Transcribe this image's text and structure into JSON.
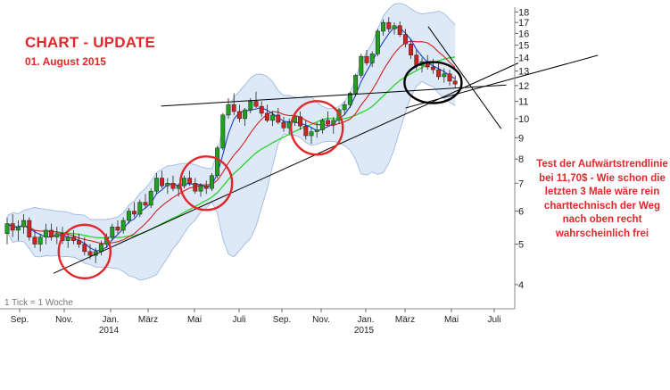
{
  "title": "CHART - UPDATE",
  "subtitle": "01. August 2015",
  "annotation": "Test der Aufwärtstrendlinie bei 11,70$ - Wie schon die letzten 3 Male wäre rein charttechnisch der Weg nach oben recht wahrscheinlich frei",
  "tick_note": "1 Tick = 1 Woche",
  "colors": {
    "up": "#1fa01f",
    "down": "#d42020",
    "ma_fast": "#1f3fd6",
    "ma_mid": "#d42020",
    "ma_slow": "#2ad42a",
    "band_fill": "#dde9f7",
    "band_edge": "#9dbbe0",
    "circle_red": "#e3262a",
    "circle_black": "#000000",
    "trendline": "#000000",
    "text_red": "#e3262a"
  },
  "chart_data": {
    "type": "candlestick",
    "interval": "weekly",
    "yscale": "log",
    "ylim": [
      3.5,
      18.5
    ],
    "y_ticks": [
      4,
      5,
      6,
      7,
      8,
      9,
      10,
      11,
      12,
      13,
      14,
      15,
      16,
      17,
      18
    ],
    "x_ticks": [
      "Sep.",
      "Nov.",
      "Jan.",
      "März",
      "Mai",
      "Juli",
      "Sep.",
      "Nov.",
      "Jan.",
      "März",
      "Mai",
      "Juli"
    ],
    "x_years": [
      "2014",
      "2015"
    ],
    "series": [
      {
        "name": "",
        "type": "ohlc",
        "values": [
          [
            5.3,
            5.8,
            5.0,
            5.6
          ],
          [
            5.6,
            5.9,
            5.2,
            5.4
          ],
          [
            5.4,
            5.7,
            5.1,
            5.5
          ],
          [
            5.5,
            5.9,
            5.3,
            5.7
          ],
          [
            5.7,
            5.8,
            5.1,
            5.2
          ],
          [
            5.2,
            5.4,
            4.9,
            5.0
          ],
          [
            5.0,
            5.3,
            4.8,
            5.2
          ],
          [
            5.2,
            5.6,
            5.0,
            5.4
          ],
          [
            5.4,
            5.6,
            5.1,
            5.2
          ],
          [
            5.2,
            5.5,
            5.0,
            5.3
          ],
          [
            5.3,
            5.5,
            5.0,
            5.1
          ],
          [
            5.1,
            5.3,
            4.9,
            5.2
          ],
          [
            5.2,
            5.4,
            5.0,
            5.1
          ],
          [
            5.1,
            5.3,
            4.9,
            5.0
          ],
          [
            5.0,
            5.2,
            4.7,
            4.8
          ],
          [
            4.8,
            5.0,
            4.6,
            4.7
          ],
          [
            4.7,
            4.9,
            4.5,
            4.8
          ],
          [
            4.8,
            5.1,
            4.7,
            5.0
          ],
          [
            5.0,
            5.3,
            4.9,
            5.2
          ],
          [
            5.2,
            5.6,
            5.1,
            5.5
          ],
          [
            5.5,
            5.7,
            5.3,
            5.4
          ],
          [
            5.4,
            5.8,
            5.3,
            5.7
          ],
          [
            5.7,
            6.1,
            5.6,
            6.0
          ],
          [
            6.0,
            6.3,
            5.8,
            5.9
          ],
          [
            5.9,
            6.4,
            5.8,
            6.3
          ],
          [
            6.3,
            6.6,
            6.1,
            6.2
          ],
          [
            6.2,
            6.8,
            6.1,
            6.7
          ],
          [
            6.7,
            7.4,
            6.6,
            7.2
          ],
          [
            7.2,
            7.5,
            6.8,
            6.9
          ],
          [
            6.9,
            7.2,
            6.6,
            7.0
          ],
          [
            7.0,
            7.3,
            6.7,
            6.8
          ],
          [
            6.8,
            7.0,
            6.5,
            6.9
          ],
          [
            6.9,
            7.3,
            6.8,
            7.2
          ],
          [
            7.2,
            7.5,
            6.9,
            7.0
          ],
          [
            7.0,
            7.2,
            6.6,
            6.7
          ],
          [
            6.7,
            7.0,
            6.5,
            6.9
          ],
          [
            6.9,
            7.1,
            6.6,
            6.8
          ],
          [
            6.8,
            7.4,
            6.7,
            7.3
          ],
          [
            7.3,
            8.6,
            7.2,
            8.5
          ],
          [
            8.5,
            10.3,
            8.4,
            10.2
          ],
          [
            10.2,
            11.2,
            10.0,
            10.8
          ],
          [
            10.8,
            11.5,
            10.2,
            10.4
          ],
          [
            10.4,
            10.8,
            9.8,
            10.0
          ],
          [
            10.0,
            10.6,
            9.6,
            10.5
          ],
          [
            10.5,
            11.2,
            10.3,
            11.0
          ],
          [
            11.0,
            11.6,
            10.6,
            10.7
          ],
          [
            10.7,
            11.0,
            10.1,
            10.3
          ],
          [
            10.3,
            10.8,
            9.8,
            9.9
          ],
          [
            9.9,
            10.4,
            9.6,
            10.2
          ],
          [
            10.2,
            10.6,
            9.7,
            9.8
          ],
          [
            9.8,
            10.1,
            9.3,
            9.5
          ],
          [
            9.5,
            10.0,
            9.2,
            9.8
          ],
          [
            9.8,
            10.3,
            9.6,
            10.1
          ],
          [
            10.1,
            10.4,
            9.4,
            9.6
          ],
          [
            9.6,
            9.9,
            8.9,
            9.1
          ],
          [
            9.1,
            9.5,
            8.7,
            9.3
          ],
          [
            9.3,
            9.8,
            9.0,
            9.4
          ],
          [
            9.4,
            10.0,
            9.2,
            9.9
          ],
          [
            9.9,
            10.4,
            9.6,
            9.7
          ],
          [
            9.7,
            10.1,
            9.2,
            9.9
          ],
          [
            9.9,
            10.6,
            9.7,
            10.5
          ],
          [
            10.5,
            11.0,
            10.2,
            10.8
          ],
          [
            10.8,
            11.6,
            10.6,
            11.5
          ],
          [
            11.5,
            12.8,
            11.3,
            12.7
          ],
          [
            12.7,
            14.3,
            12.5,
            14.1
          ],
          [
            14.1,
            14.6,
            13.4,
            13.6
          ],
          [
            13.6,
            14.5,
            13.3,
            14.3
          ],
          [
            14.3,
            16.4,
            14.1,
            16.2
          ],
          [
            16.2,
            17.3,
            15.8,
            17.0
          ],
          [
            17.0,
            17.5,
            16.1,
            16.4
          ],
          [
            16.4,
            17.0,
            15.9,
            16.7
          ],
          [
            16.7,
            17.1,
            15.7,
            15.9
          ],
          [
            15.9,
            16.4,
            14.8,
            15.1
          ],
          [
            15.1,
            15.5,
            13.9,
            14.2
          ],
          [
            14.2,
            14.6,
            13.1,
            13.4
          ],
          [
            13.4,
            14.0,
            12.9,
            13.7
          ],
          [
            13.7,
            14.2,
            13.1,
            13.3
          ],
          [
            13.3,
            13.9,
            12.8,
            13.1
          ],
          [
            13.1,
            13.6,
            12.4,
            12.6
          ],
          [
            12.6,
            13.2,
            12.2,
            12.8
          ],
          [
            12.8,
            13.1,
            12.0,
            12.3
          ],
          [
            12.3,
            12.7,
            11.8,
            12.1
          ]
        ]
      },
      {
        "name": "",
        "type": "line",
        "role": "moving-average-fast"
      },
      {
        "name": "",
        "type": "line",
        "role": "moving-average-mid"
      },
      {
        "name": "",
        "type": "line",
        "role": "moving-average-slow"
      },
      {
        "name": "",
        "type": "area",
        "role": "bollinger-band"
      }
    ],
    "trendlines": [
      {
        "from": {
          "week": 14,
          "price": 4.6
        },
        "to": {
          "week": 84,
          "price": 12.1
        }
      },
      {
        "from": {
          "week": 32,
          "price": 10.8
        },
        "to": {
          "week": 84,
          "price": 11.9
        }
      },
      {
        "from": {
          "week": 77,
          "price": 16.0
        },
        "to": {
          "week": 88,
          "price": 10.0
        }
      }
    ],
    "markers": [
      {
        "type": "circle",
        "week": 14,
        "price": 4.8,
        "color": "red"
      },
      {
        "type": "circle",
        "week": 36,
        "price": 7.0,
        "color": "red"
      },
      {
        "type": "circle",
        "week": 56,
        "price": 9.5,
        "color": "red"
      },
      {
        "type": "circle",
        "week": 77,
        "price": 12.2,
        "color": "black"
      }
    ]
  }
}
